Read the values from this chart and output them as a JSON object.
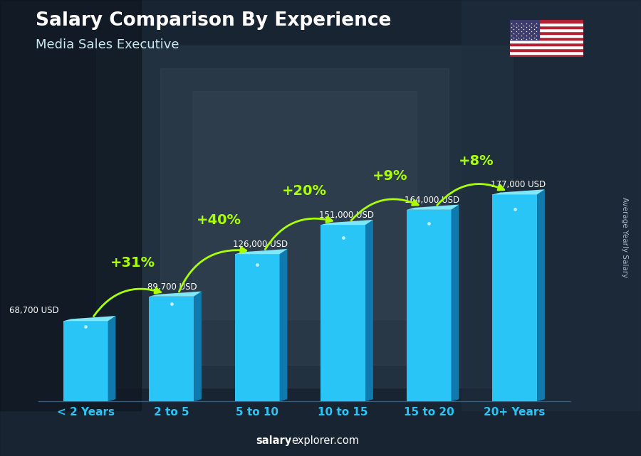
{
  "title": "Salary Comparison By Experience",
  "subtitle": "Media Sales Executive",
  "categories": [
    "< 2 Years",
    "2 to 5",
    "5 to 10",
    "10 to 15",
    "15 to 20",
    "20+ Years"
  ],
  "values": [
    68700,
    89700,
    126000,
    151000,
    164000,
    177000
  ],
  "salary_labels": [
    "68,700 USD",
    "89,700 USD",
    "126,000 USD",
    "151,000 USD",
    "164,000 USD",
    "177,000 USD"
  ],
  "pct_changes": [
    "+31%",
    "+40%",
    "+20%",
    "+9%",
    "+8%"
  ],
  "bar_face_color": "#29C5F6",
  "bar_right_color": "#0e7aad",
  "bar_top_color": "#7ee8fa",
  "bg_color": "#2c3e50",
  "title_color": "#FFFFFF",
  "subtitle_color": "#CCDDEE",
  "salary_label_color": "#FFFFFF",
  "pct_color": "#AAFF00",
  "xlabel_color": "#29C5F6",
  "footer_salary_color": "#FFFFFF",
  "footer_explorer_color": "#AACCDD",
  "ylabel_text": "Average Yearly Salary",
  "footer_bold": "salary",
  "footer_normal": "explorer.com",
  "figsize": [
    9.0,
    6.41
  ],
  "dpi": 100
}
